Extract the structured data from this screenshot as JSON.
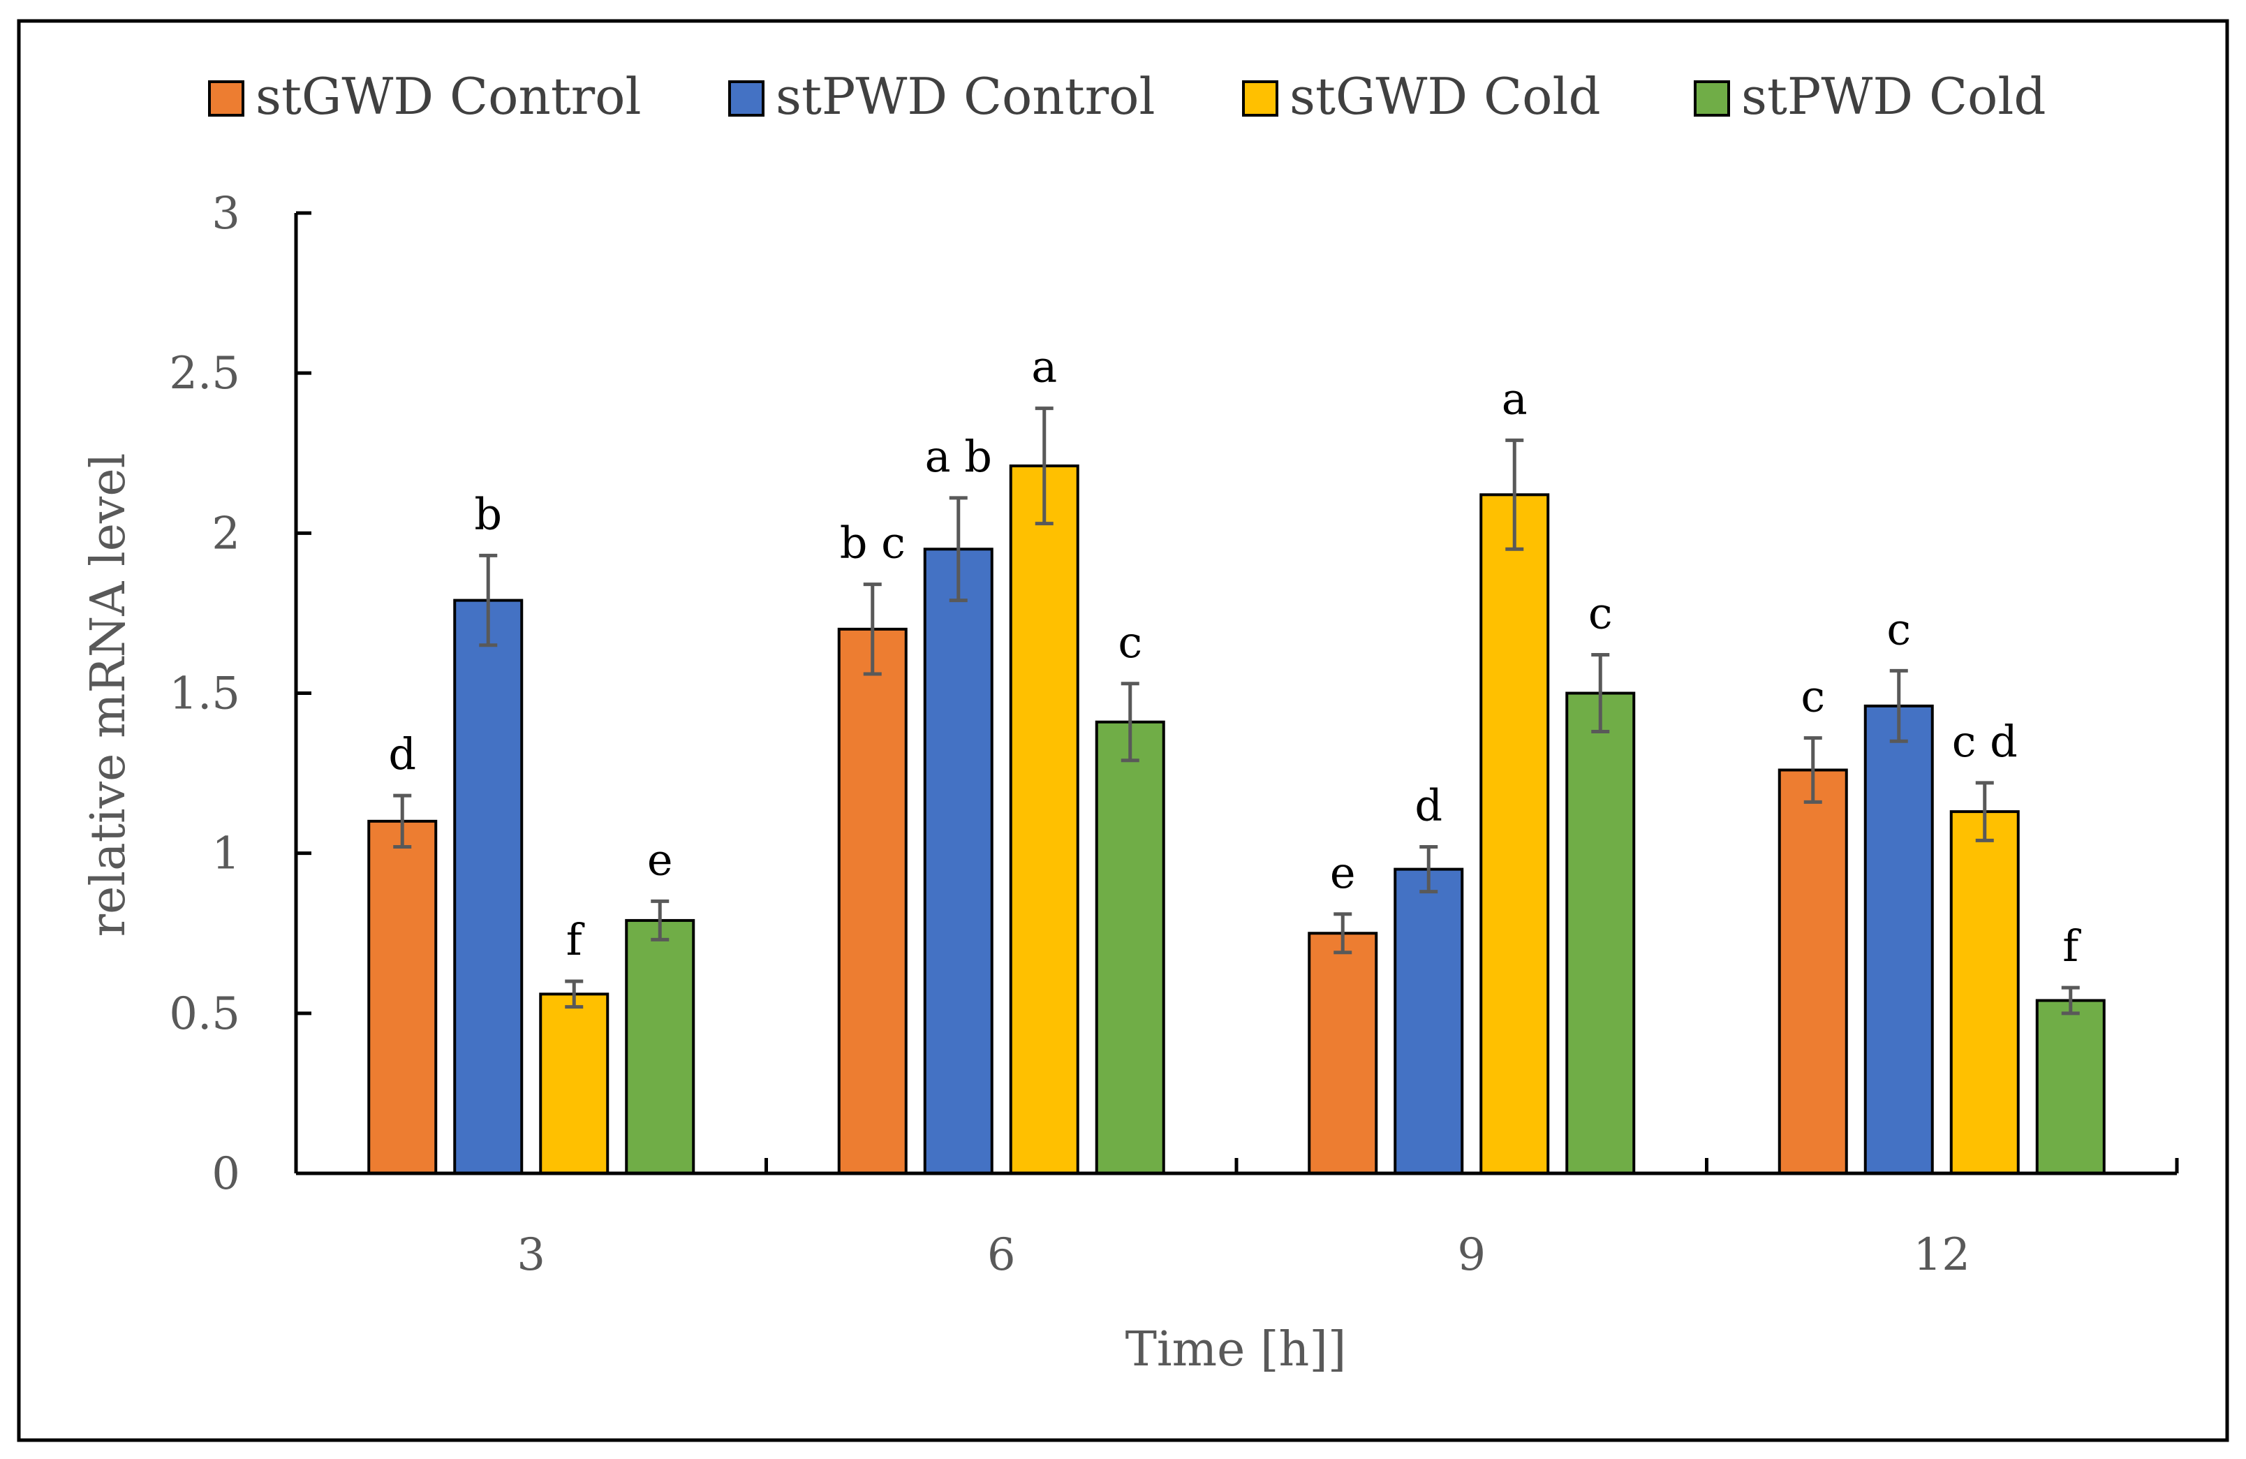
{
  "chart_data": {
    "type": "bar",
    "title": "",
    "xlabel": "Time [h]]",
    "ylabel": "relative mRNA level",
    "categories": [
      "3",
      "6",
      "9",
      "12"
    ],
    "ylim": [
      0,
      3
    ],
    "yticks": [
      0,
      0.5,
      1,
      1.5,
      2,
      2.5,
      3
    ],
    "ytick_labels": [
      "0",
      "0.5",
      "1",
      "1.5",
      "2",
      "2.5",
      "3"
    ],
    "grid": false,
    "legend_position": "top",
    "series": [
      {
        "name": "stGWD Control",
        "color": "#ED7D31",
        "values": [
          1.1,
          1.7,
          0.75,
          1.26
        ],
        "errors": [
          0.08,
          0.14,
          0.06,
          0.1
        ],
        "significance": [
          "d",
          "b c",
          "e",
          "c"
        ]
      },
      {
        "name": "stPWD Control",
        "color": "#4472C4",
        "values": [
          1.79,
          1.95,
          0.95,
          1.46
        ],
        "errors": [
          0.14,
          0.16,
          0.07,
          0.11
        ],
        "significance": [
          "b",
          "a b",
          "d",
          "c"
        ]
      },
      {
        "name": "stGWD Cold",
        "color": "#FFC000",
        "values": [
          0.56,
          2.21,
          2.12,
          1.13
        ],
        "errors": [
          0.04,
          0.18,
          0.17,
          0.09
        ],
        "significance": [
          "f",
          "a",
          "a",
          "c d"
        ]
      },
      {
        "name": "stPWD Cold",
        "color": "#70AD47",
        "values": [
          0.79,
          1.41,
          1.5,
          0.54
        ],
        "errors": [
          0.06,
          0.12,
          0.12,
          0.04
        ],
        "significance": [
          "e",
          "c",
          "c",
          "f"
        ]
      }
    ]
  }
}
